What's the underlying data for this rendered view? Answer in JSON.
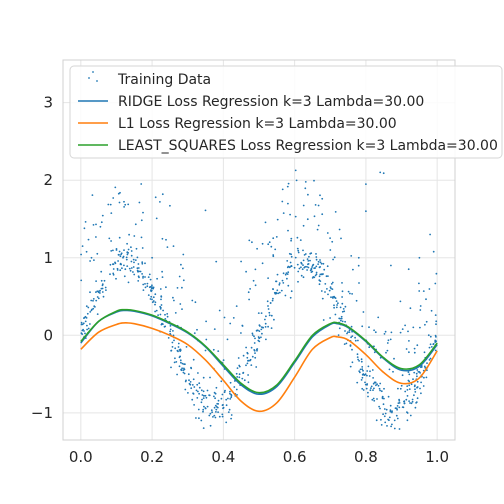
{
  "chart_data": {
    "type": "scatter+line",
    "title": "",
    "xlabel": "",
    "ylabel": "",
    "xlim": [
      -0.05,
      1.05
    ],
    "ylim": [
      -1.35,
      3.55
    ],
    "grid": true,
    "legend_placement": "top-left",
    "xticks": [
      0.0,
      0.2,
      0.4,
      0.6,
      0.8,
      1.0
    ],
    "xtick_labels": [
      "0.0",
      "0.2",
      "0.4",
      "0.6",
      "0.8",
      "1.0"
    ],
    "yticks": [
      -1,
      0,
      1,
      2,
      3
    ],
    "ytick_labels": [
      "−1",
      "0",
      "1",
      "2",
      "3"
    ],
    "colors": {
      "scatter": "#1f77b4",
      "ridge": "#1f77b4",
      "l1": "#ff7f0e",
      "least_squares": "#2ca02c",
      "grid": "#e5e5e5",
      "spine": "#d0d0d0"
    },
    "scatter": {
      "name": "Training Data",
      "count": 1000,
      "description": "noisy samples of sin(4*pi*x) with positive outliers up to about 2.1"
    },
    "series": [
      {
        "name": "RIDGE Loss Regression k=3 Lambda=30.00",
        "color": "#1f77b4",
        "x": [
          0.0,
          0.05,
          0.1,
          0.12,
          0.15,
          0.2,
          0.25,
          0.3,
          0.35,
          0.4,
          0.45,
          0.5,
          0.55,
          0.6,
          0.65,
          0.7,
          0.72,
          0.75,
          0.8,
          0.85,
          0.9,
          0.95,
          1.0
        ],
        "y": [
          -0.1,
          0.18,
          0.3,
          0.32,
          0.31,
          0.25,
          0.15,
          0.03,
          -0.15,
          -0.4,
          -0.64,
          -0.76,
          -0.66,
          -0.35,
          -0.02,
          0.14,
          0.15,
          0.1,
          -0.08,
          -0.3,
          -0.45,
          -0.4,
          -0.12
        ]
      },
      {
        "name": "L1 Loss Regression k=3 Lambda=30.00",
        "color": "#ff7f0e",
        "x": [
          0.0,
          0.05,
          0.1,
          0.12,
          0.15,
          0.2,
          0.25,
          0.3,
          0.35,
          0.4,
          0.45,
          0.5,
          0.55,
          0.6,
          0.65,
          0.7,
          0.72,
          0.75,
          0.8,
          0.85,
          0.9,
          0.95,
          1.0
        ],
        "y": [
          -0.18,
          0.04,
          0.14,
          0.16,
          0.15,
          0.09,
          0.0,
          -0.12,
          -0.32,
          -0.58,
          -0.85,
          -0.98,
          -0.87,
          -0.54,
          -0.18,
          -0.03,
          -0.02,
          -0.06,
          -0.25,
          -0.48,
          -0.62,
          -0.55,
          -0.2
        ]
      },
      {
        "name": "LEAST_SQUARES Loss Regression k=3 Lambda=30.00",
        "color": "#2ca02c",
        "x": [
          0.0,
          0.05,
          0.1,
          0.12,
          0.15,
          0.2,
          0.25,
          0.3,
          0.35,
          0.4,
          0.45,
          0.5,
          0.55,
          0.6,
          0.65,
          0.7,
          0.72,
          0.75,
          0.8,
          0.85,
          0.9,
          0.95,
          1.0
        ],
        "y": [
          -0.08,
          0.18,
          0.31,
          0.33,
          0.32,
          0.26,
          0.16,
          0.04,
          -0.14,
          -0.38,
          -0.62,
          -0.74,
          -0.64,
          -0.33,
          0.0,
          0.15,
          0.16,
          0.11,
          -0.07,
          -0.29,
          -0.43,
          -0.38,
          -0.1
        ]
      }
    ],
    "outliers": [
      {
        "x": 0.005,
        "y": 1.15
      },
      {
        "x": 0.01,
        "y": 1.38
      },
      {
        "x": 0.03,
        "y": 1.0
      },
      {
        "x": 0.08,
        "y": 1.25
      },
      {
        "x": 0.1,
        "y": 1.1
      },
      {
        "x": 0.13,
        "y": 1.18
      },
      {
        "x": 0.15,
        "y": 1.28
      },
      {
        "x": 0.2,
        "y": 1.0
      },
      {
        "x": 0.21,
        "y": 1.78
      },
      {
        "x": 0.23,
        "y": 1.82
      },
      {
        "x": 0.25,
        "y": 1.67
      },
      {
        "x": 0.26,
        "y": 1.15
      },
      {
        "x": 0.35,
        "y": 1.61
      },
      {
        "x": 0.38,
        "y": 0.95
      },
      {
        "x": 0.48,
        "y": 1.2
      },
      {
        "x": 0.49,
        "y": 0.85
      },
      {
        "x": 0.51,
        "y": 1.18
      },
      {
        "x": 0.53,
        "y": 1.2
      },
      {
        "x": 0.54,
        "y": 1.02
      },
      {
        "x": 0.59,
        "y": 1.22
      },
      {
        "x": 0.66,
        "y": 1.05
      },
      {
        "x": 0.7,
        "y": 1.1
      },
      {
        "x": 0.73,
        "y": 1.25
      },
      {
        "x": 0.78,
        "y": 1.0
      },
      {
        "x": 0.8,
        "y": 1.6
      },
      {
        "x": 0.8,
        "y": 1.95
      },
      {
        "x": 0.84,
        "y": 2.1
      },
      {
        "x": 0.85,
        "y": 2.09
      },
      {
        "x": 0.87,
        "y": 0.9
      },
      {
        "x": 0.95,
        "y": 1.0
      },
      {
        "x": 0.98,
        "y": 1.3
      }
    ]
  }
}
